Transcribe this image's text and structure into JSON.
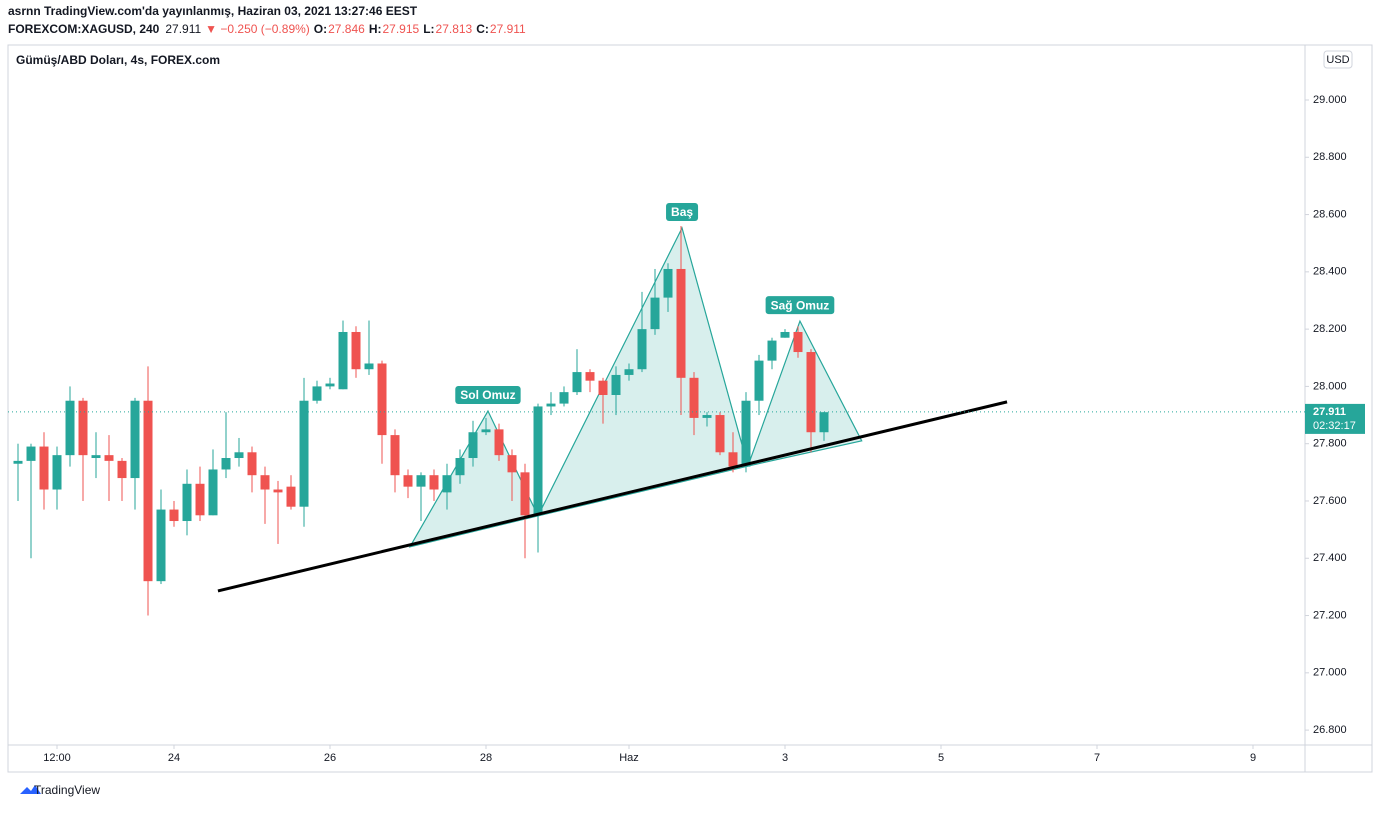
{
  "header": {
    "line1": "asrnn TradingView.com'da yayınlanmış, Haziran 03, 2021 13:27:46 EEST",
    "symbol": "FOREXCOM:XAGUSD, 240",
    "last": "27.911",
    "change": "▼ −0.250 (−0.89%)",
    "ohlc": [
      {
        "key": "O:",
        "value": "27.846"
      },
      {
        "key": "H:",
        "value": "27.915"
      },
      {
        "key": "L:",
        "value": "27.813"
      },
      {
        "key": "C:",
        "value": "27.911"
      }
    ]
  },
  "footer": "TradingView",
  "chart_data": {
    "type": "candlestick",
    "title": "Gümüş/ABD Doları, 4s, FOREX.com",
    "currency": "USD",
    "up_color": "#26a69a",
    "down_color": "#ef5350",
    "x": [
      0,
      1,
      2,
      3,
      4,
      5,
      6,
      7,
      8,
      9,
      10,
      11,
      12,
      13,
      14,
      15,
      16,
      17,
      18,
      19,
      20,
      21,
      22,
      23,
      24,
      25,
      26,
      27,
      28,
      29,
      30,
      31,
      32,
      33,
      34,
      35,
      36,
      37,
      38,
      39,
      40,
      41,
      42,
      43,
      44,
      45,
      46,
      47,
      48,
      49,
      50,
      51,
      52,
      53,
      54,
      55,
      56,
      57,
      58,
      59,
      60,
      61,
      62
    ],
    "open": [
      27.73,
      27.74,
      27.79,
      27.64,
      27.76,
      27.95,
      27.75,
      27.76,
      27.74,
      27.68,
      27.95,
      27.32,
      27.57,
      27.53,
      27.66,
      27.55,
      27.71,
      27.75,
      27.77,
      27.69,
      27.64,
      27.65,
      27.58,
      27.95,
      28.0,
      27.99,
      28.19,
      28.06,
      28.08,
      27.83,
      27.69,
      27.65,
      27.69,
      27.63,
      27.69,
      27.75,
      27.84,
      27.85,
      27.76,
      27.7,
      27.55,
      27.93,
      27.94,
      27.98,
      28.05,
      28.02,
      27.97,
      28.04,
      28.06,
      28.2,
      28.31,
      28.41,
      28.03,
      27.89,
      27.9,
      27.77,
      27.72,
      27.95,
      28.09,
      28.17,
      28.19,
      28.12,
      27.84
    ],
    "high": [
      27.8,
      27.8,
      27.84,
      27.79,
      28.0,
      27.96,
      27.84,
      27.83,
      27.75,
      27.96,
      28.07,
      27.64,
      27.6,
      27.71,
      27.72,
      27.78,
      27.91,
      27.82,
      27.79,
      27.72,
      27.67,
      27.69,
      28.03,
      28.02,
      28.03,
      28.23,
      28.21,
      28.23,
      28.09,
      27.85,
      27.71,
      27.7,
      27.71,
      27.73,
      27.78,
      27.88,
      27.89,
      27.87,
      27.78,
      27.73,
      27.94,
      27.98,
      28.0,
      28.13,
      28.06,
      28.03,
      28.07,
      28.08,
      28.33,
      28.41,
      28.43,
      28.56,
      28.05,
      27.91,
      27.91,
      27.84,
      27.98,
      28.11,
      28.17,
      28.2,
      28.21,
      28.13,
      27.91
    ],
    "low": [
      27.6,
      27.4,
      27.57,
      27.57,
      27.72,
      27.6,
      27.68,
      27.6,
      27.6,
      27.57,
      27.2,
      27.31,
      27.51,
      27.48,
      27.53,
      27.55,
      27.68,
      27.72,
      27.63,
      27.52,
      27.45,
      27.57,
      27.51,
      27.94,
      27.99,
      27.99,
      28.03,
      28.04,
      27.73,
      27.63,
      27.61,
      27.53,
      27.6,
      27.57,
      27.66,
      27.72,
      27.83,
      27.74,
      27.6,
      27.4,
      27.42,
      27.9,
      27.93,
      27.97,
      27.98,
      27.87,
      27.9,
      28.02,
      28.05,
      28.18,
      28.26,
      27.9,
      27.83,
      27.86,
      27.76,
      27.7,
      27.7,
      27.9,
      28.06,
      28.17,
      28.1,
      27.77,
      27.81
    ],
    "close": [
      27.74,
      27.79,
      27.64,
      27.76,
      27.95,
      27.76,
      27.76,
      27.74,
      27.68,
      27.95,
      27.32,
      27.57,
      27.53,
      27.66,
      27.55,
      27.71,
      27.75,
      27.77,
      27.69,
      27.64,
      27.63,
      27.58,
      27.95,
      28.0,
      28.01,
      28.19,
      28.06,
      28.08,
      27.83,
      27.69,
      27.65,
      27.69,
      27.64,
      27.69,
      27.75,
      27.84,
      27.85,
      27.76,
      27.7,
      27.55,
      27.93,
      27.94,
      27.98,
      28.05,
      28.02,
      27.97,
      28.04,
      28.06,
      28.2,
      28.31,
      28.41,
      28.03,
      27.89,
      27.9,
      27.77,
      27.72,
      27.95,
      28.09,
      28.16,
      28.19,
      28.12,
      27.84,
      27.91
    ],
    "xlim": [
      -0.77,
      99
    ],
    "xticks": [
      {
        "value": 3,
        "label": "12:00"
      },
      {
        "value": 12,
        "label": "24"
      },
      {
        "value": 24,
        "label": "26"
      },
      {
        "value": 36,
        "label": "28"
      },
      {
        "value": 47,
        "label": "Haz"
      },
      {
        "value": 59,
        "label": "3"
      },
      {
        "value": 71,
        "label": "5"
      },
      {
        "value": 83,
        "label": "7"
      },
      {
        "value": 95,
        "label": "9"
      }
    ],
    "ylim": [
      26.748,
      29.192
    ],
    "yticks": [
      {
        "value": 29,
        "label": "29.000"
      },
      {
        "value": 28.8,
        "label": "28.800"
      },
      {
        "value": 28.6,
        "label": "28.600"
      },
      {
        "value": 28.4,
        "label": "28.400"
      },
      {
        "value": 28.2,
        "label": "28.200"
      },
      {
        "value": 28,
        "label": "28.000"
      },
      {
        "value": 27.8,
        "label": "27.800"
      },
      {
        "value": 27.6,
        "label": "27.600"
      },
      {
        "value": 27.4,
        "label": "27.400"
      },
      {
        "value": 27.2,
        "label": "27.200"
      },
      {
        "value": 27,
        "label": "27.000"
      },
      {
        "value": 26.8,
        "label": "26.800"
      }
    ],
    "last_price": 27.911,
    "countdown": "02:32:17",
    "trendline": {
      "x": [
        15.38,
        76.08
      ],
      "y": [
        27.286,
        27.946
      ]
    },
    "patterns": [
      {
        "label": "Sol Omuz",
        "x": [
          30.15,
          36.15,
          40
        ],
        "y": [
          27.44,
          27.914,
          27.548
        ]
      },
      {
        "label": "Baş",
        "x": [
          40,
          51.08,
          56.15
        ],
        "y": [
          27.548,
          28.553,
          27.722
        ]
      },
      {
        "label": "Sağ Omuz",
        "x": [
          56.15,
          60.15,
          64.9
        ],
        "y": [
          27.722,
          28.228,
          27.81
        ]
      }
    ]
  }
}
